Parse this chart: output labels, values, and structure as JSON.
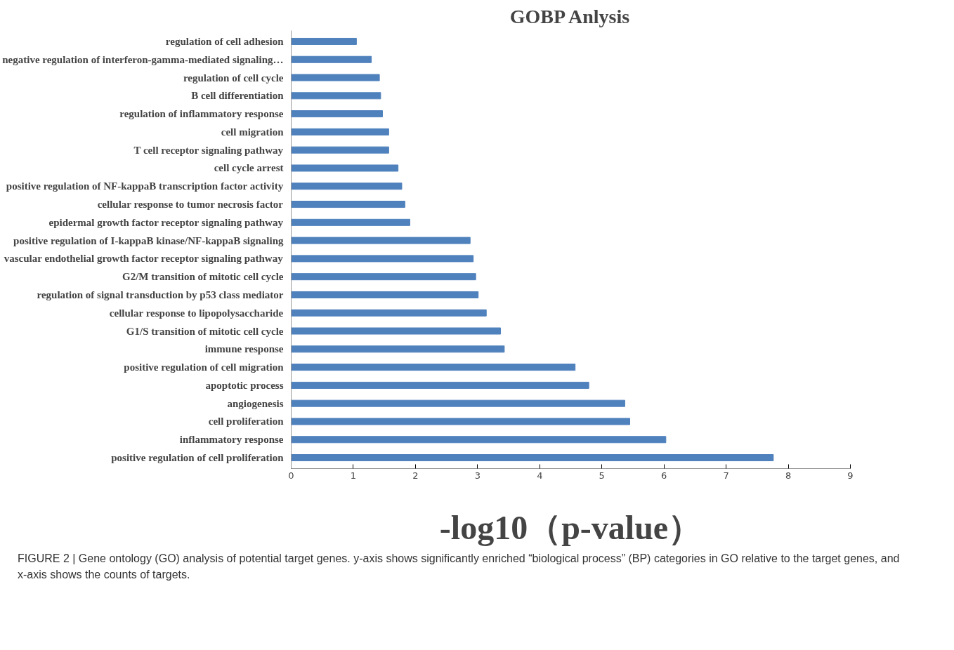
{
  "chart_data": {
    "type": "bar",
    "orientation": "horizontal",
    "title": "GOBP Anlysis",
    "xlabel": "-log10（p-value）",
    "categories": [
      "regulation of cell adhesion",
      "negative regulation of interferon-gamma-mediated signaling…",
      "regulation of cell cycle",
      "B cell differentiation",
      "regulation of inflammatory response",
      "cell migration",
      "T cell receptor signaling pathway",
      "cell cycle arrest",
      "positive regulation of NF-kappaB transcription factor activity",
      "cellular response to tumor necrosis factor",
      "epidermal growth factor receptor signaling pathway",
      "positive regulation of I-kappaB kinase/NF-kappaB signaling",
      "vascular endothelial growth factor receptor signaling pathway",
      "G2/M transition of mitotic cell cycle",
      "regulation of signal transduction by p53 class mediator",
      "cellular response to lipopolysaccharide",
      "G1/S transition of mitotic cell cycle",
      "immune response",
      "positive regulation of cell migration",
      "apoptotic process",
      "angiogenesis",
      "cell proliferation",
      "inflammatory response",
      "positive regulation of cell proliferation"
    ],
    "values": [
      1.05,
      1.29,
      1.42,
      1.44,
      1.47,
      1.57,
      1.57,
      1.72,
      1.78,
      1.83,
      1.91,
      2.88,
      2.93,
      2.97,
      3.01,
      3.14,
      3.37,
      3.43,
      4.57,
      4.79,
      5.37,
      5.45,
      6.03,
      7.76
    ],
    "color": "#4f81bd",
    "xlim": [
      0,
      9
    ],
    "xticks": [
      0,
      1,
      2,
      3,
      4,
      5,
      6,
      7,
      8,
      9
    ],
    "grid": false,
    "annotations": [
      "FIGURE 2 | Gene ontology (GO) analysis of potential target genes. y-axis shows significantly enriched “biological process” (BP) categories in GO relative to the target genes, and x-axis shows the counts of targets."
    ]
  }
}
